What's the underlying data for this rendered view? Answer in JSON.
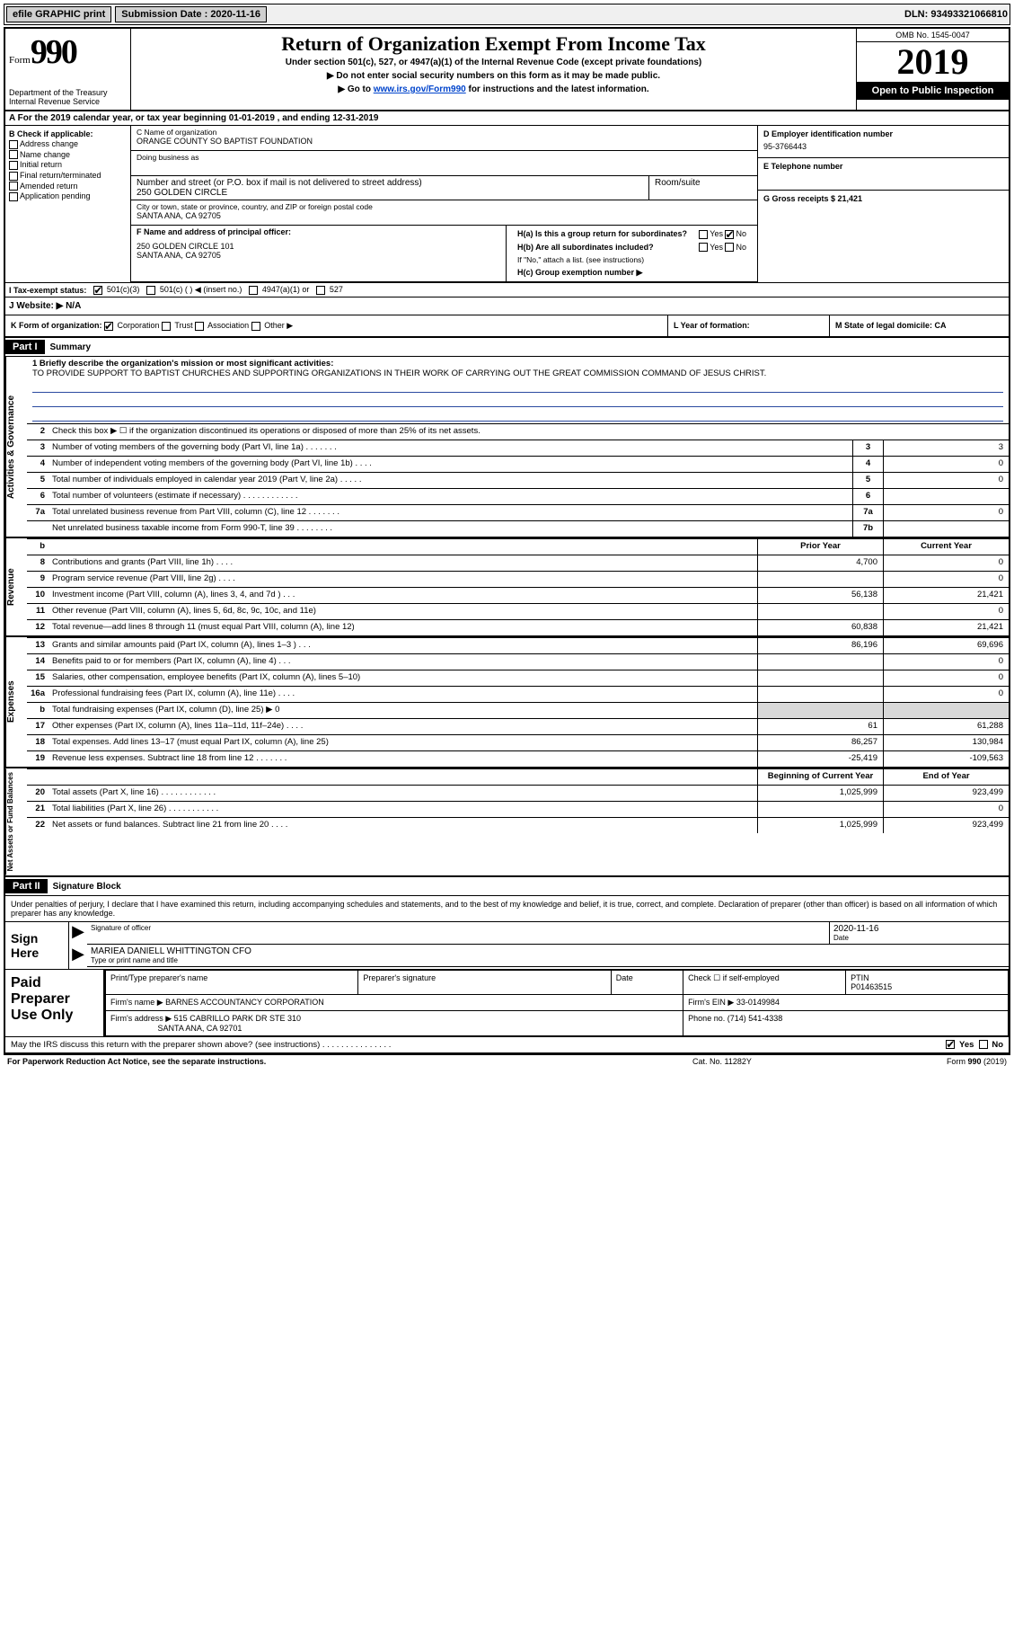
{
  "topbar": {
    "efile": "efile GRAPHIC print",
    "submission_label": "Submission Date : 2020-11-16",
    "dln": "DLN: 93493321066810"
  },
  "header": {
    "form_label": "Form",
    "form_number": "990",
    "dept": "Department of the Treasury",
    "irs": "Internal Revenue Service",
    "title": "Return of Organization Exempt From Income Tax",
    "subtitle": "Under section 501(c), 527, or 4947(a)(1) of the Internal Revenue Code (except private foundations)",
    "note1": "▶ Do not enter social security numbers on this form as it may be made public.",
    "note2_pre": "▶ Go to ",
    "note2_link": "www.irs.gov/Form990",
    "note2_post": " for instructions and the latest information.",
    "omb": "OMB No. 1545-0047",
    "year": "2019",
    "public": "Open to Public Inspection"
  },
  "row_a": "A For the 2019 calendar year, or tax year beginning 01-01-2019    , and ending 12-31-2019",
  "col_b": {
    "label": "B Check if applicable:",
    "items": [
      "Address change",
      "Name change",
      "Initial return",
      "Final return/terminated",
      "Amended return",
      "Application pending"
    ]
  },
  "col_c": {
    "name_lbl": "C Name of organization",
    "name": "ORANGE COUNTY SO BAPTIST FOUNDATION",
    "dba_lbl": "Doing business as",
    "addr_lbl": "Number and street (or P.O. box if mail is not delivered to street address)",
    "room_lbl": "Room/suite",
    "addr": "250 GOLDEN CIRCLE",
    "city_lbl": "City or town, state or province, country, and ZIP or foreign postal code",
    "city": "SANTA ANA, CA  92705",
    "f_lbl": "F  Name and address of principal officer:",
    "f_addr1": "250 GOLDEN CIRCLE 101",
    "f_addr2": "SANTA ANA, CA  92705"
  },
  "col_d": {
    "ein_lbl": "D Employer identification number",
    "ein": "95-3766443",
    "tel_lbl": "E Telephone number",
    "gross_lbl": "G Gross receipts $ 21,421"
  },
  "col_h": {
    "ha": "H(a)  Is this a group return for subordinates?",
    "hb": "H(b)  Are all subordinates included?",
    "hb_note": "If \"No,\" attach a list. (see instructions)",
    "hc": "H(c)  Group exemption number ▶",
    "yes": "Yes",
    "no": "No"
  },
  "tax_status": {
    "label": "I  Tax-exempt status:",
    "b1": "501(c)(3)",
    "b2": "501(c) (  ) ◀ (insert no.)",
    "b3": "4947(a)(1) or",
    "b4": "527"
  },
  "row_j": "J  Website: ▶  N/A",
  "row_k": {
    "k": "K Form of organization:",
    "corp": "Corporation",
    "trust": "Trust",
    "assoc": "Association",
    "other": "Other ▶",
    "l": "L Year of formation:",
    "m": "M State of legal domicile: CA"
  },
  "part1": {
    "header": "Part I",
    "title": "Summary",
    "q1": "1  Briefly describe the organization's mission or most significant activities:",
    "mission": "TO PROVIDE SUPPORT TO BAPTIST CHURCHES AND SUPPORTING ORGANIZATIONS IN THEIR WORK OF CARRYING OUT THE GREAT COMMISSION COMMAND OF JESUS CHRIST.",
    "q2": "Check this box ▶ ☐  if the organization discontinued its operations or disposed of more than 25% of its net assets.",
    "side_ag": "Activities & Governance",
    "side_rev": "Revenue",
    "side_exp": "Expenses",
    "side_na": "Net Assets or Fund Balances",
    "lines_ag": [
      {
        "n": "3",
        "d": "Number of voting members of the governing body (Part VI, line 1a)  .   .   .   .   .   .   .",
        "b": "3",
        "v": "3"
      },
      {
        "n": "4",
        "d": "Number of independent voting members of the governing body (Part VI, line 1b)  .   .   .   .",
        "b": "4",
        "v": "0"
      },
      {
        "n": "5",
        "d": "Total number of individuals employed in calendar year 2019 (Part V, line 2a)  .   .   .   .   .",
        "b": "5",
        "v": "0"
      },
      {
        "n": "6",
        "d": "Total number of volunteers (estimate if necessary)   .   .   .   .   .   .   .   .   .   .   .   .",
        "b": "6",
        "v": ""
      },
      {
        "n": "7a",
        "d": "Total unrelated business revenue from Part VIII, column (C), line 12  .   .   .   .   .   .   .",
        "b": "7a",
        "v": "0"
      },
      {
        "n": "",
        "d": "Net unrelated business taxable income from Form 990-T, line 39   .   .   .   .   .   .   .   .",
        "b": "7b",
        "v": ""
      }
    ],
    "hdr_prior": "Prior Year",
    "hdr_curr": "Current Year",
    "lines_rev": [
      {
        "n": "8",
        "d": "Contributions and grants (Part VIII, line 1h)   .   .   .   .",
        "p": "4,700",
        "c": "0"
      },
      {
        "n": "9",
        "d": "Program service revenue (Part VIII, line 2g)   .   .   .   .",
        "p": "",
        "c": "0"
      },
      {
        "n": "10",
        "d": "Investment income (Part VIII, column (A), lines 3, 4, and 7d )   .   .   .",
        "p": "56,138",
        "c": "21,421"
      },
      {
        "n": "11",
        "d": "Other revenue (Part VIII, column (A), lines 5, 6d, 8c, 9c, 10c, and 11e)",
        "p": "",
        "c": "0"
      },
      {
        "n": "12",
        "d": "Total revenue—add lines 8 through 11 (must equal Part VIII, column (A), line 12)",
        "p": "60,838",
        "c": "21,421"
      }
    ],
    "lines_exp": [
      {
        "n": "13",
        "d": "Grants and similar amounts paid (Part IX, column (A), lines 1–3 )   .   .   .",
        "p": "86,196",
        "c": "69,696"
      },
      {
        "n": "14",
        "d": "Benefits paid to or for members (Part IX, column (A), line 4)   .   .   .",
        "p": "",
        "c": "0"
      },
      {
        "n": "15",
        "d": "Salaries, other compensation, employee benefits (Part IX, column (A), lines 5–10)",
        "p": "",
        "c": "0"
      },
      {
        "n": "16a",
        "d": "Professional fundraising fees (Part IX, column (A), line 11e)   .   .   .   .",
        "p": "",
        "c": "0"
      },
      {
        "n": "b",
        "d": "Total fundraising expenses (Part IX, column (D), line 25) ▶ 0",
        "p": "shade",
        "c": "shade"
      },
      {
        "n": "17",
        "d": "Other expenses (Part IX, column (A), lines 11a–11d, 11f–24e)   .   .   .   .",
        "p": "61",
        "c": "61,288"
      },
      {
        "n": "18",
        "d": "Total expenses. Add lines 13–17 (must equal Part IX, column (A), line 25)",
        "p": "86,257",
        "c": "130,984"
      },
      {
        "n": "19",
        "d": "Revenue less expenses. Subtract line 18 from line 12  .   .   .   .   .   .   .",
        "p": "-25,419",
        "c": "-109,563"
      }
    ],
    "hdr_begin": "Beginning of Current Year",
    "hdr_end": "End of Year",
    "lines_na": [
      {
        "n": "20",
        "d": "Total assets (Part X, line 16)  .   .   .   .   .   .   .   .   .   .   .   .",
        "p": "1,025,999",
        "c": "923,499"
      },
      {
        "n": "21",
        "d": "Total liabilities (Part X, line 26)  .   .   .   .   .   .   .   .   .   .   .",
        "p": "",
        "c": "0"
      },
      {
        "n": "22",
        "d": "Net assets or fund balances. Subtract line 21 from line 20   .   .   .   .",
        "p": "1,025,999",
        "c": "923,499"
      }
    ]
  },
  "part2": {
    "header": "Part II",
    "title": "Signature Block",
    "decl": "Under penalties of perjury, I declare that I have examined this return, including accompanying schedules and statements, and to the best of my knowledge and belief, it is true, correct, and complete. Declaration of preparer (other than officer) is based on all information of which preparer has any knowledge.",
    "sign_here": "Sign Here",
    "sig_officer": "Signature of officer",
    "date": "Date",
    "date_val": "2020-11-16",
    "name": "MARIEA DANIELL WHITTINGTON  CFO",
    "name_lbl": "Type or print name and title",
    "paid": "Paid Preparer Use Only",
    "prep_name": "Print/Type preparer's name",
    "prep_sig": "Preparer's signature",
    "prep_date": "Date",
    "self_emp": "Check ☐ if self-employed",
    "ptin_lbl": "PTIN",
    "ptin": "P01463515",
    "firm_name_lbl": "Firm's name    ▶",
    "firm_name": "BARNES ACCOUNTANCY CORPORATION",
    "firm_ein_lbl": "Firm's EIN ▶",
    "firm_ein": "33-0149984",
    "firm_addr_lbl": "Firm's address ▶",
    "firm_addr1": "515 CABRILLO PARK DR STE 310",
    "firm_addr2": "SANTA ANA, CA  92701",
    "phone_lbl": "Phone no.",
    "phone": "(714) 541-4338",
    "discuss": "May the IRS discuss this return with the preparer shown above? (see instructions)   .   .   .   .   .   .   .   .   .   .   .   .   .   .   .",
    "yes": "Yes",
    "no": "No"
  },
  "footer": {
    "left": "For Paperwork Reduction Act Notice, see the separate instructions.",
    "mid": "Cat. No. 11282Y",
    "right": "Form 990 (2019)"
  }
}
